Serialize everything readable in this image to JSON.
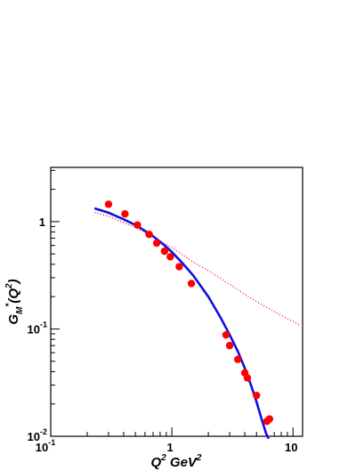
{
  "chart_data": {
    "type": "scatter",
    "x_scale": "log",
    "y_scale": "log",
    "xlim": [
      0.1,
      12
    ],
    "ylim": [
      0.01,
      3.2
    ],
    "grid": false,
    "x_ticks": [
      {
        "value": 0.1,
        "mantissa": "10",
        "exponent": "-1"
      },
      {
        "value": 1,
        "mantissa": "1",
        "exponent": ""
      },
      {
        "value": 10,
        "mantissa": "10",
        "exponent": ""
      }
    ],
    "y_ticks": [
      {
        "value": 0.01,
        "mantissa": "10",
        "exponent": "-2"
      },
      {
        "value": 0.1,
        "mantissa": "10",
        "exponent": "-1"
      },
      {
        "value": 1,
        "mantissa": "1",
        "exponent": ""
      }
    ],
    "xlabel": {
      "parts": [
        "Q",
        "2",
        " GeV",
        "2"
      ]
    },
    "ylabel": {
      "parts": [
        "G",
        "M",
        "*",
        "(Q",
        "2",
        ")"
      ]
    },
    "colors": {
      "points": "#ff0000",
      "fit": "#1010e0",
      "dotted": "#ff0000"
    },
    "series": [
      {
        "kind": "points",
        "x": [
          0.3,
          0.41,
          0.52,
          0.65,
          0.75,
          0.87,
          0.97,
          1.15,
          1.45,
          2.8,
          3.0,
          3.5,
          4.0,
          4.2,
          5.0,
          6.1,
          6.4
        ],
        "y": [
          1.45,
          1.18,
          0.93,
          0.76,
          0.63,
          0.53,
          0.47,
          0.38,
          0.265,
          0.088,
          0.07,
          0.052,
          0.039,
          0.035,
          0.024,
          0.0138,
          0.0145
        ]
      },
      {
        "kind": "solid-line",
        "x": [
          0.23,
          0.3,
          0.4,
          0.5,
          0.6,
          0.7,
          0.8,
          0.9,
          1.0,
          1.2,
          1.5,
          2.0,
          2.5,
          3.0,
          3.5,
          4.0,
          4.5,
          5.0,
          5.5,
          6.0,
          6.3
        ],
        "y": [
          1.33,
          1.21,
          1.05,
          0.93,
          0.82,
          0.73,
          0.65,
          0.58,
          0.52,
          0.42,
          0.315,
          0.2,
          0.13,
          0.088,
          0.062,
          0.043,
          0.03,
          0.021,
          0.0145,
          0.0106,
          0.0095
        ]
      },
      {
        "kind": "dotted-line",
        "x": [
          0.23,
          0.3,
          0.4,
          0.5,
          0.7,
          1.0,
          1.5,
          2.0,
          3.0,
          4.0,
          5.0,
          7.0,
          9.0,
          11.5
        ],
        "y": [
          1.22,
          1.12,
          0.98,
          0.88,
          0.72,
          0.57,
          0.42,
          0.35,
          0.26,
          0.21,
          0.18,
          0.145,
          0.125,
          0.108
        ]
      }
    ]
  }
}
